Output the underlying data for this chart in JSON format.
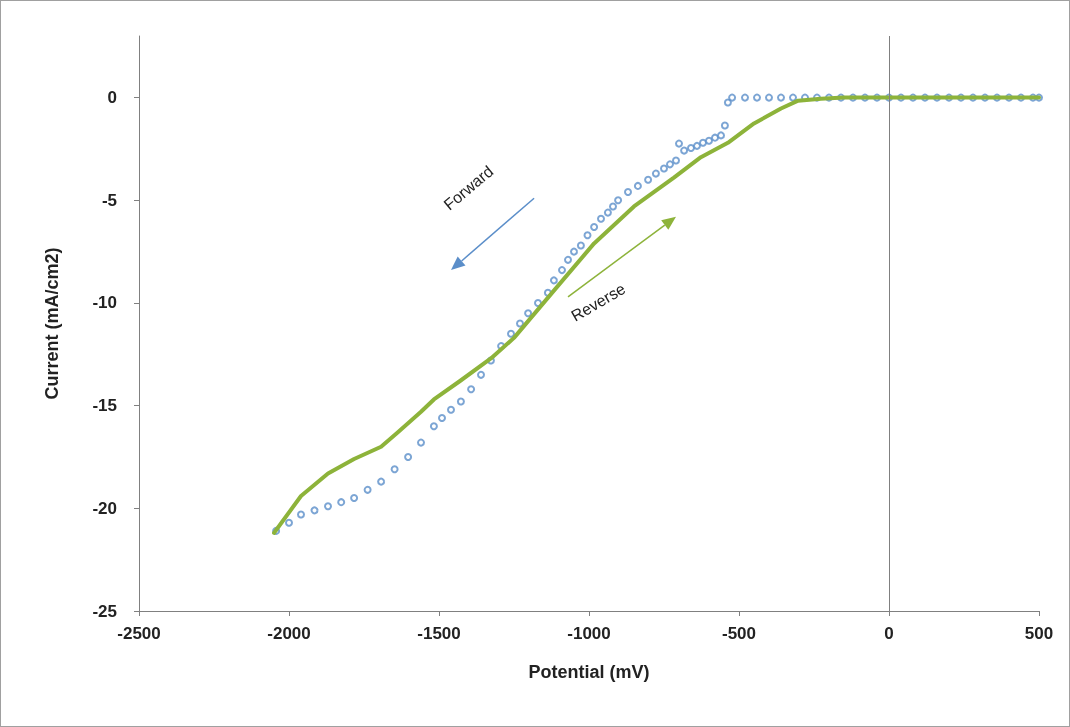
{
  "chart_data": {
    "type": "scatter",
    "xlabel": "Potential (mV)",
    "ylabel": "Current (mA/cm2)",
    "xlim": [
      -2500,
      500
    ],
    "xticks": [
      -2500,
      -2000,
      -1500,
      -1000,
      -500,
      0,
      500
    ],
    "ylim": [
      -25,
      3
    ],
    "yticks": [
      -25,
      -20,
      -15,
      -10,
      -5,
      0
    ],
    "grid": false,
    "ref_lines": [
      {
        "axis": "x",
        "value": 0,
        "color": "#808080"
      }
    ],
    "annotations": [
      "Forward",
      "Reverse"
    ],
    "series": [
      {
        "marker": "circle",
        "color": "#5b8ec9",
        "x": [
          -2043,
          -2000,
          -1960,
          -1915,
          -1870,
          -1826,
          -1783,
          -1738,
          -1693,
          -1648,
          -1603,
          -1560,
          -1517,
          -1490,
          -1460,
          -1427,
          -1393,
          -1360,
          -1327,
          -1293,
          -1260,
          -1230,
          -1203,
          -1170,
          -1137,
          -1117,
          -1090,
          -1070,
          -1050,
          -1027,
          -1005,
          -983,
          -960,
          -937,
          -920,
          -903,
          -870,
          -837,
          -803,
          -777,
          -750,
          -730,
          -710,
          -700,
          -683,
          -660,
          -640,
          -620,
          -600,
          -580,
          -560,
          -547,
          -537,
          -523,
          -480,
          -440,
          -400,
          -360,
          -320,
          -280,
          -240,
          -200,
          -160,
          -120,
          -80,
          -40,
          0,
          40,
          80,
          120,
          160,
          200,
          240,
          280,
          320,
          360,
          400,
          440,
          480,
          500
        ],
        "values": [
          -21.1,
          -20.7,
          -20.3,
          -20.1,
          -19.9,
          -19.7,
          -19.5,
          -19.1,
          -18.7,
          -18.1,
          -17.5,
          -16.8,
          -16.0,
          -15.6,
          -15.2,
          -14.8,
          -14.2,
          -13.5,
          -12.8,
          -12.1,
          -11.5,
          -11.0,
          -10.5,
          -10.0,
          -9.5,
          -8.9,
          -8.4,
          -7.9,
          -7.5,
          -7.2,
          -6.7,
          -6.3,
          -5.9,
          -5.6,
          -5.3,
          -5.0,
          -4.6,
          -4.3,
          -4.0,
          -3.7,
          -3.45,
          -3.25,
          -3.06,
          -2.24,
          -2.58,
          -2.45,
          -2.35,
          -2.2,
          -2.1,
          -1.95,
          -1.84,
          -1.36,
          -0.24,
          0,
          0,
          0,
          0,
          0,
          0,
          0,
          0,
          0,
          0,
          0,
          0,
          0,
          0,
          0,
          0,
          0,
          0,
          0,
          0,
          0,
          0,
          0,
          0,
          0,
          0,
          0
        ]
      },
      {
        "type": "line",
        "marker": "none",
        "line_style": "solid",
        "color": "#8db33a",
        "x": [
          -2050,
          -1960,
          -1870,
          -1783,
          -1693,
          -1637,
          -1560,
          -1517,
          -1430,
          -1327,
          -1250,
          -1117,
          -983,
          -850,
          -717,
          -627,
          -537,
          -450,
          -360,
          -303,
          -227,
          -150,
          500
        ],
        "values": [
          -21.2,
          -19.4,
          -18.3,
          -17.6,
          -17.0,
          -16.3,
          -15.3,
          -14.7,
          -13.8,
          -12.7,
          -11.7,
          -9.4,
          -7.1,
          -5.3,
          -3.9,
          -2.9,
          -2.2,
          -1.26,
          -0.53,
          -0.15,
          -0.05,
          0,
          0
        ]
      }
    ]
  }
}
